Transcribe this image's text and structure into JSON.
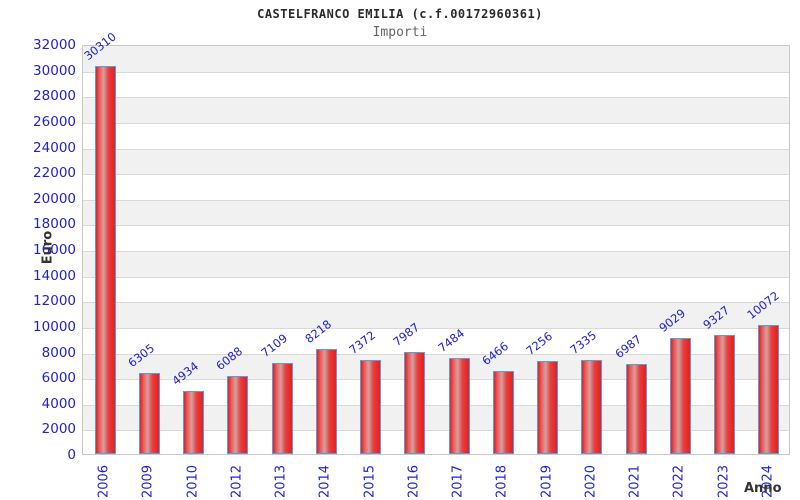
{
  "chart": {
    "title": "CASTELFRANCO EMILIA (c.f.00172960361)",
    "subtitle": "Importi",
    "ylabel": "Euro",
    "xlabel": "Anno"
  },
  "chart_data": {
    "type": "bar",
    "title": "CASTELFRANCO EMILIA (c.f.00172960361)",
    "subtitle": "Importi",
    "xlabel": "Anno",
    "ylabel": "Euro",
    "categories": [
      "2006",
      "2009",
      "2010",
      "2012",
      "2013",
      "2014",
      "2015",
      "2016",
      "2017",
      "2018",
      "2019",
      "2020",
      "2021",
      "2022",
      "2023",
      "2024"
    ],
    "values": [
      30310,
      6305,
      4934,
      6088,
      7109,
      8218,
      7372,
      7987,
      7484,
      6466,
      7256,
      7335,
      6987,
      9029,
      9327,
      10072
    ],
    "ylim": [
      0,
      32000
    ],
    "ytick_step": 2000,
    "grid": true,
    "alternating_bands": true,
    "legend_position": "none",
    "colors": {
      "bar_fill": "#e41f1f",
      "bar_highlight": "#d2a0a0",
      "bar_border": "#55a0dc",
      "axis_label_blue": "#2121d4",
      "band_gray": "#f1f1f1",
      "gridline": "#d9d9d9",
      "title": "#2b2b2b",
      "subtitle": "#666666",
      "axis_title": "#333333"
    }
  }
}
